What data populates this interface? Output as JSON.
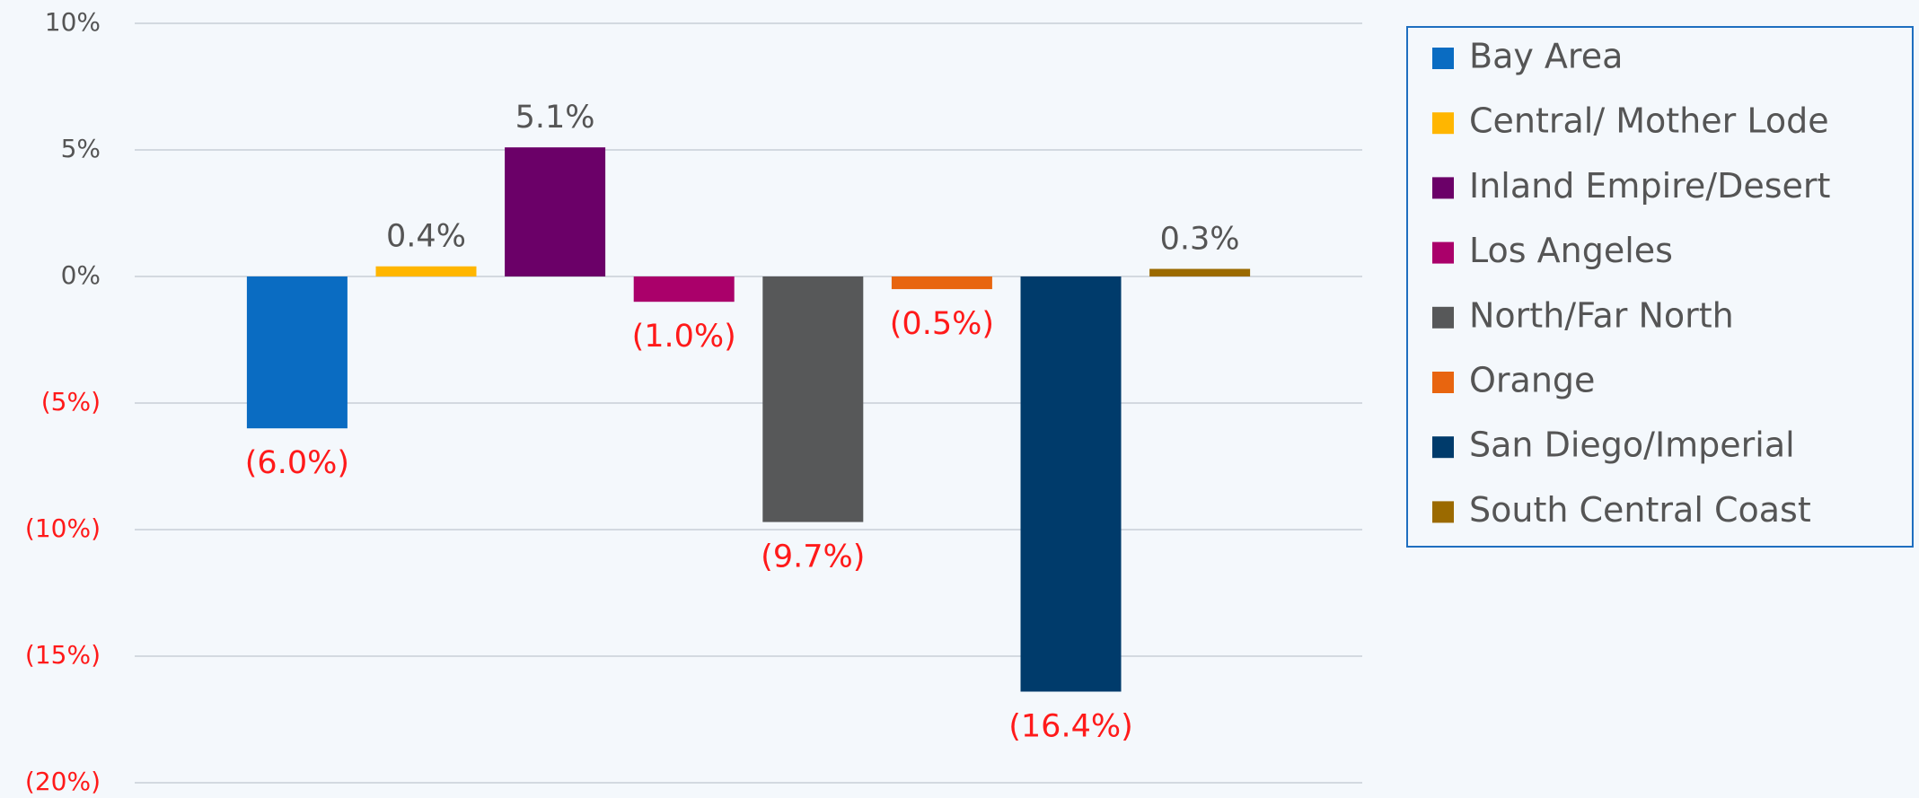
{
  "chart_data": {
    "type": "bar",
    "categories": [
      null
    ],
    "series": [
      {
        "name": "Bay Area",
        "color": "#0a6cc2",
        "values": [
          -6.0
        ],
        "value_labels": [
          "(6.0%)"
        ]
      },
      {
        "name": "Central/ Mother Lode",
        "color": "#ffb600",
        "values": [
          0.4
        ],
        "value_labels": [
          "0.4%"
        ]
      },
      {
        "name": "Inland Empire/Desert",
        "color": "#6b0068",
        "values": [
          5.1
        ],
        "value_labels": [
          "5.1%"
        ]
      },
      {
        "name": "Los Angeles",
        "color": "#aa006a",
        "values": [
          -1.0
        ],
        "value_labels": [
          "(1.0%)"
        ]
      },
      {
        "name": "North/Far North",
        "color": "#575859",
        "values": [
          -9.7
        ],
        "value_labels": [
          "(9.7%)"
        ]
      },
      {
        "name": "Orange",
        "color": "#e8650f",
        "values": [
          -0.5
        ],
        "value_labels": [
          "(0.5%)"
        ]
      },
      {
        "name": "San Diego/Imperial",
        "color": "#003b6b",
        "values": [
          -16.4
        ],
        "value_labels": [
          "(16.4%)"
        ]
      },
      {
        "name": "South Central Coast",
        "color": "#9b6a00",
        "values": [
          0.3
        ],
        "value_labels": [
          "0.3%"
        ]
      }
    ],
    "ylim": [
      -20,
      10
    ],
    "yticks": [
      {
        "value": 10,
        "label": "10%"
      },
      {
        "value": 5,
        "label": "5%"
      },
      {
        "value": 0,
        "label": "0%"
      },
      {
        "value": -5,
        "label": "(5%)"
      },
      {
        "value": -10,
        "label": "(10%)"
      },
      {
        "value": -15,
        "label": "(15%)"
      },
      {
        "value": -20,
        "label": "(20%)"
      }
    ],
    "grid": true,
    "legend": "right"
  }
}
